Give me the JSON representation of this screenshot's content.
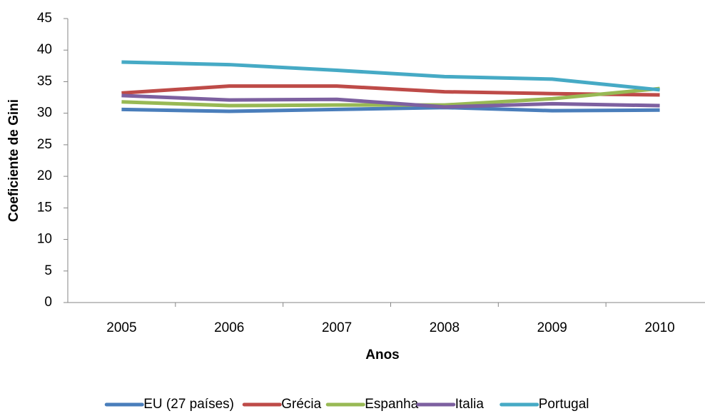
{
  "chart_data": {
    "type": "line",
    "x_label": "Anos",
    "y_label": "Coeficiente de Gini",
    "categories": [
      "2005",
      "2006",
      "2007",
      "2008",
      "2009",
      "2010"
    ],
    "ylim": [
      0,
      45
    ],
    "yticks": [
      0,
      5,
      10,
      15,
      20,
      25,
      30,
      35,
      40,
      45
    ],
    "grid": false,
    "legend": "bottom",
    "series": [
      {
        "name": "EU (27 países)",
        "color": "#4a7ebb",
        "values": [
          30.6,
          30.3,
          30.6,
          30.9,
          30.4,
          30.5
        ]
      },
      {
        "name": "Grécia",
        "color": "#be4b48",
        "values": [
          33.2,
          34.3,
          34.3,
          33.4,
          33.1,
          32.9
        ]
      },
      {
        "name": "Espanha",
        "color": "#98b954",
        "values": [
          31.8,
          31.2,
          31.3,
          31.3,
          32.3,
          33.9
        ]
      },
      {
        "name": "Italia",
        "color": "#7d60a0",
        "values": [
          32.8,
          32.1,
          32.2,
          31.0,
          31.5,
          31.2
        ]
      },
      {
        "name": "Portugal",
        "color": "#46aac5",
        "values": [
          38.1,
          37.7,
          36.8,
          35.8,
          35.4,
          33.7
        ]
      }
    ]
  }
}
